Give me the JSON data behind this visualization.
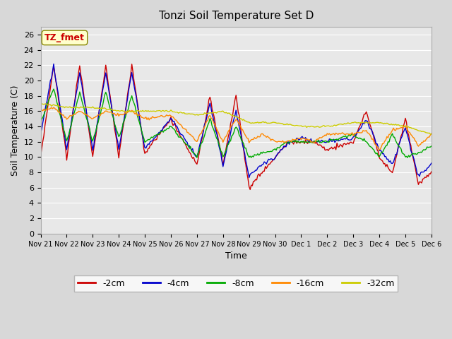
{
  "title": "Tonzi Soil Temperature Set D",
  "xlabel": "Time",
  "ylabel": "Soil Temperature (C)",
  "ylim": [
    0,
    27
  ],
  "yticks": [
    0,
    2,
    4,
    6,
    8,
    10,
    12,
    14,
    16,
    18,
    20,
    22,
    24,
    26
  ],
  "legend_label": "TZ_fmet",
  "series_colors": {
    "-2cm": "#cc0000",
    "-4cm": "#0000cc",
    "-8cm": "#00aa00",
    "-16cm": "#ff8800",
    "-32cm": "#cccc00"
  },
  "x_tick_labels": [
    "Nov 21",
    "Nov 22",
    "Nov 23",
    "Nov 24",
    "Nov 25",
    "Nov 26",
    "Nov 27",
    "Nov 28",
    "Nov 29",
    "Nov 30",
    "Dec 1",
    "Dec 2",
    "Dec 3",
    "Dec 4",
    "Dec 5",
    "Dec 6"
  ],
  "num_points": 361,
  "series2_xp": [
    0,
    0.5,
    1,
    1.5,
    2,
    2.5,
    3,
    3.5,
    4,
    5,
    6,
    6.5,
    7,
    7.5,
    8,
    8.5,
    9,
    9.5,
    10,
    10.5,
    11,
    12,
    12.5,
    13,
    13.5,
    14,
    14.5,
    15
  ],
  "series2_yp": [
    10,
    22,
    10,
    22,
    10,
    22,
    10,
    22,
    10.5,
    15,
    9,
    18,
    9,
    18,
    6,
    8,
    10,
    12,
    12,
    12,
    11,
    12,
    16,
    10,
    8,
    15,
    6.5,
    8
  ],
  "series4_xp": [
    0,
    0.5,
    1,
    1.5,
    2,
    2.5,
    3,
    3.5,
    4,
    5,
    6,
    6.5,
    7,
    7.5,
    8,
    8.5,
    9,
    9.5,
    10,
    10.5,
    11,
    12,
    12.5,
    13,
    13.5,
    14,
    14.5,
    15
  ],
  "series4_yp": [
    13,
    22,
    11,
    21,
    11,
    21,
    11,
    21,
    11,
    15,
    10,
    17,
    9,
    16,
    7.5,
    9,
    10,
    12,
    12.5,
    12,
    12,
    12.5,
    15,
    11,
    9,
    14,
    7.5,
    9
  ],
  "series8_xp": [
    0,
    0.5,
    1,
    1.5,
    2,
    2.5,
    3,
    3.5,
    4,
    5,
    6,
    6.5,
    7,
    7.5,
    8,
    8.5,
    9,
    9.5,
    10,
    10.5,
    11,
    12,
    12.5,
    13,
    13.5,
    14,
    14.5,
    15
  ],
  "series8_yp": [
    14.5,
    19,
    12,
    18.5,
    12,
    18.5,
    12.5,
    18,
    12,
    14,
    10,
    15,
    10,
    14,
    10,
    10.5,
    11,
    12,
    12,
    12,
    12,
    13,
    12,
    10,
    13,
    10,
    10.5,
    11.5
  ],
  "series16_xp": [
    0,
    0.5,
    1,
    1.5,
    2,
    2.5,
    3,
    3.5,
    4,
    5,
    6,
    6.5,
    7,
    7.5,
    8,
    8.5,
    9,
    9.5,
    10,
    10.5,
    11,
    12,
    12.5,
    13,
    13.5,
    14,
    14.5,
    15
  ],
  "series16_yp": [
    16,
    16.5,
    15,
    16,
    15,
    16,
    15.5,
    16,
    15,
    15.5,
    12,
    15.5,
    12,
    15,
    12,
    13,
    12,
    12,
    12.5,
    12,
    13,
    13,
    13.5,
    11,
    13.5,
    14,
    11.5,
    13
  ],
  "series32_xp": [
    0,
    1,
    2,
    3,
    4,
    5,
    6,
    7,
    8,
    9,
    10,
    11,
    12,
    13,
    14,
    15
  ],
  "series32_yp": [
    17,
    16.5,
    16.5,
    16,
    16,
    16,
    15.5,
    16,
    14.5,
    14.5,
    14,
    14,
    14.5,
    14.5,
    14,
    13
  ]
}
